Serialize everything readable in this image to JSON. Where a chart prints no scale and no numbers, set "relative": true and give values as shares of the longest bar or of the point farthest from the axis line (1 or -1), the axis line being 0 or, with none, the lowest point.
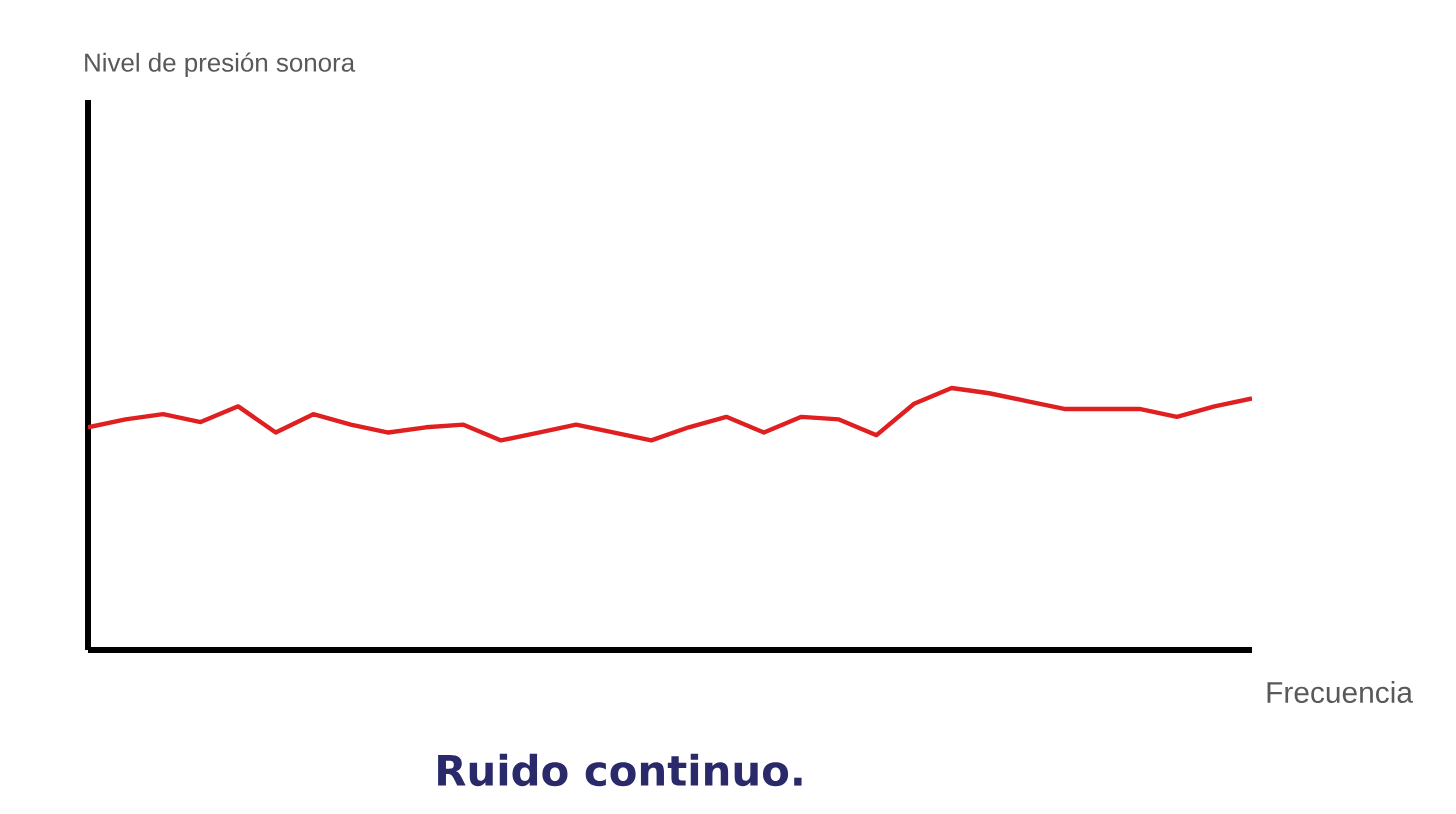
{
  "chart_data": {
    "type": "line",
    "title": "Ruido continuo.",
    "annotations": [
      "Nivel de presión sonora"
    ],
    "xlabel": "Frecuencia",
    "relative": true,
    "categories": [
      null,
      null,
      null,
      null,
      null,
      null,
      null,
      null,
      null,
      null,
      null,
      null,
      null,
      null,
      null,
      null,
      null,
      null,
      null,
      null,
      null,
      null,
      null,
      null,
      null,
      null,
      null,
      null,
      null,
      null,
      null,
      null
    ],
    "series": [
      {
        "color": "#e02020",
        "values": [
          0.85,
          0.88,
          0.9,
          0.87,
          0.93,
          0.83,
          0.9,
          0.86,
          0.83,
          0.85,
          0.86,
          0.8,
          0.83,
          0.86,
          0.83,
          0.8,
          0.85,
          0.89,
          0.83,
          0.89,
          0.88,
          0.82,
          0.94,
          1,
          0.98,
          0.95,
          0.92,
          0.92,
          0.92,
          0.89,
          0.93,
          0.96
        ]
      }
    ]
  }
}
